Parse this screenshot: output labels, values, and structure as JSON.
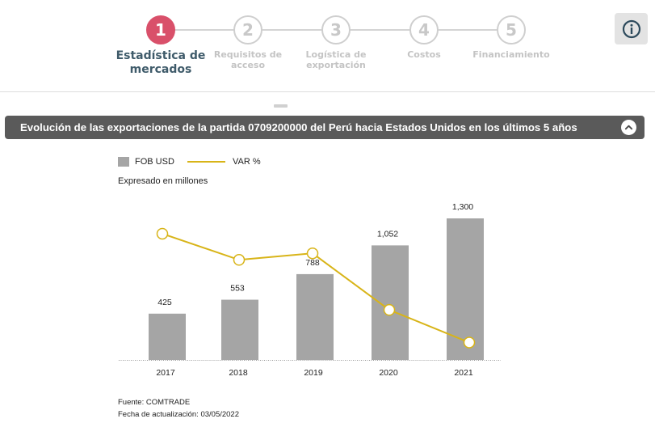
{
  "stepper": {
    "steps": [
      {
        "number": "1",
        "label_line1": "Estadística de",
        "label_line2": "mercados",
        "active": true
      },
      {
        "number": "2",
        "label_line1": "Requisitos de",
        "label_line2": "acceso",
        "active": false
      },
      {
        "number": "3",
        "label_line1": "Logística de",
        "label_line2": "exportación",
        "active": false
      },
      {
        "number": "4",
        "label_line1": "Costos",
        "label_line2": "",
        "active": false
      },
      {
        "number": "5",
        "label_line1": "Financiamiento",
        "label_line2": "",
        "active": false
      }
    ],
    "info_icon": "info-icon"
  },
  "section": {
    "title": "Evolución de las exportaciones de la partida 0709200000 del Perú hacia Estados Unidos en los últimos 5 años",
    "collapse_icon": "chevron-up-icon"
  },
  "legend": {
    "bar_label": "FOB USD",
    "line_label": "VAR %"
  },
  "unit_note": "Expresado en millones",
  "footer": {
    "source": "Fuente: COMTRADE",
    "updated": "Fecha de actualización: 03/05/2022"
  },
  "colors": {
    "active_step": "#d9506a",
    "active_label": "#3f5b6a",
    "bar": "#a5a5a5",
    "line": "#d8b418",
    "section_bar": "#5a5a5a"
  },
  "chart_data": {
    "type": "bar",
    "categories": [
      "2017",
      "2018",
      "2019",
      "2020",
      "2021"
    ],
    "series": [
      {
        "name": "FOB USD",
        "type": "bar",
        "values": [
          425,
          553,
          788,
          1052,
          1300
        ],
        "labels": [
          "425",
          "553",
          "788",
          "1,052",
          "1,300"
        ]
      },
      {
        "name": "VAR %",
        "type": "line",
        "values": [
          0.58,
          0.46,
          0.49,
          0.23,
          0.08
        ]
      }
    ],
    "title": "",
    "xlabel": "",
    "ylabel": "",
    "ylim": [
      0,
      1400
    ],
    "grid": false,
    "legend_position": "top-left"
  }
}
